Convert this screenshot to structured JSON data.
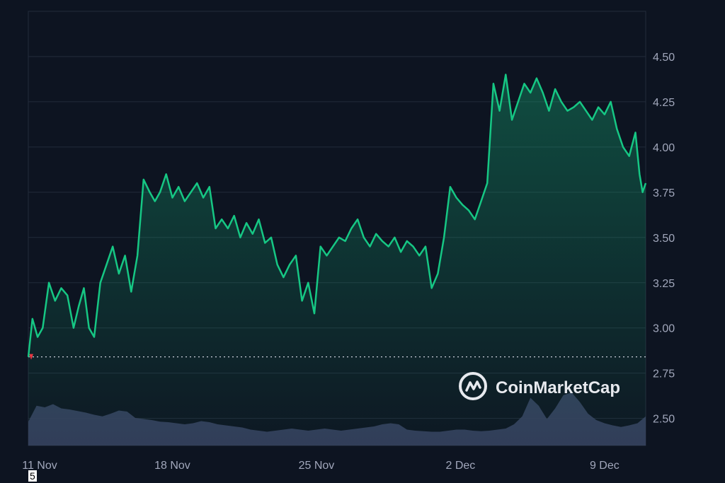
{
  "brand": {
    "name": "CoinMarketCap"
  },
  "stray_label": "5",
  "colors": {
    "background": "#0d1421",
    "grid": "#222b3a",
    "price_line": "#16c784",
    "volume_fill": "#3a4262",
    "baseline_marker": "#ea3943"
  },
  "chart_data": {
    "type": "line",
    "title": "",
    "xlabel": "",
    "ylabel": "",
    "y_axis_position": "right",
    "ylim": [
      2.35,
      4.75
    ],
    "yticks": [
      2.5,
      2.75,
      3.0,
      3.25,
      3.5,
      3.75,
      4.0,
      4.25,
      4.5
    ],
    "ytick_labels": [
      "2.50",
      "2.75",
      "3.00",
      "3.25",
      "3.50",
      "3.75",
      "4.00",
      "4.25",
      "4.50"
    ],
    "x_domain": [
      0,
      30
    ],
    "xticks": [
      {
        "x": 0,
        "label": "11 Nov"
      },
      {
        "x": 7,
        "label": "18 Nov"
      },
      {
        "x": 14,
        "label": "25 Nov"
      },
      {
        "x": 21,
        "label": "2 Dec"
      },
      {
        "x": 28,
        "label": "9 Dec"
      }
    ],
    "grid": "horizontal",
    "reference_line": {
      "y": 2.84,
      "style": "dotted"
    },
    "series": [
      {
        "values_x": [
          0,
          0.2,
          0.45,
          0.7,
          1.0,
          1.3,
          1.6,
          1.9,
          2.2,
          2.45,
          2.7,
          2.95,
          3.2,
          3.5,
          3.8,
          4.1,
          4.4,
          4.7,
          5.0,
          5.3,
          5.6,
          5.9,
          6.15,
          6.4,
          6.7,
          7.0,
          7.3,
          7.6,
          7.9,
          8.2,
          8.5,
          8.8,
          9.1,
          9.4,
          9.7,
          10.0,
          10.3,
          10.6,
          10.9,
          11.2,
          11.5,
          11.8,
          12.1,
          12.4,
          12.7,
          13.0,
          13.3,
          13.6,
          13.9,
          14.2,
          14.5,
          14.8,
          15.1,
          15.4,
          15.7,
          16.0,
          16.3,
          16.6,
          16.9,
          17.2,
          17.5,
          17.8,
          18.1,
          18.4,
          18.7,
          19.0,
          19.3,
          19.6,
          19.9,
          20.2,
          20.5,
          20.8,
          21.1,
          21.4,
          21.7,
          22.0,
          22.3,
          22.6,
          22.9,
          23.2,
          23.5,
          23.8,
          24.1,
          24.4,
          24.7,
          25.0,
          25.3,
          25.6,
          25.9,
          26.2,
          26.5,
          26.8,
          27.1,
          27.4,
          27.7,
          28.0,
          28.3,
          28.6,
          28.9,
          29.2,
          29.5,
          29.7,
          29.85,
          30.0
        ],
        "values": [
          2.84,
          3.05,
          2.95,
          3.0,
          3.25,
          3.15,
          3.22,
          3.18,
          3.0,
          3.12,
          3.22,
          3.0,
          2.95,
          3.25,
          3.35,
          3.45,
          3.3,
          3.4,
          3.2,
          3.4,
          3.82,
          3.75,
          3.7,
          3.75,
          3.85,
          3.72,
          3.78,
          3.7,
          3.75,
          3.8,
          3.72,
          3.78,
          3.55,
          3.6,
          3.55,
          3.62,
          3.5,
          3.58,
          3.52,
          3.6,
          3.47,
          3.5,
          3.35,
          3.28,
          3.35,
          3.4,
          3.15,
          3.25,
          3.08,
          3.45,
          3.4,
          3.45,
          3.5,
          3.48,
          3.55,
          3.6,
          3.5,
          3.45,
          3.52,
          3.48,
          3.45,
          3.5,
          3.42,
          3.48,
          3.45,
          3.4,
          3.45,
          3.22,
          3.3,
          3.5,
          3.78,
          3.72,
          3.68,
          3.65,
          3.6,
          3.7,
          3.8,
          4.35,
          4.2,
          4.4,
          4.15,
          4.25,
          4.35,
          4.3,
          4.38,
          4.3,
          4.2,
          4.32,
          4.25,
          4.2,
          4.22,
          4.25,
          4.2,
          4.15,
          4.22,
          4.18,
          4.25,
          4.1,
          4.0,
          3.95,
          4.08,
          3.85,
          3.75,
          3.8
        ]
      }
    ],
    "volume": {
      "values": [
        0.45,
        0.75,
        0.72,
        0.78,
        0.7,
        0.68,
        0.65,
        0.62,
        0.58,
        0.55,
        0.6,
        0.66,
        0.64,
        0.52,
        0.5,
        0.48,
        0.45,
        0.44,
        0.42,
        0.4,
        0.42,
        0.46,
        0.44,
        0.4,
        0.38,
        0.36,
        0.34,
        0.3,
        0.28,
        0.26,
        0.28,
        0.3,
        0.32,
        0.3,
        0.28,
        0.3,
        0.32,
        0.3,
        0.28,
        0.3,
        0.32,
        0.34,
        0.36,
        0.4,
        0.42,
        0.4,
        0.3,
        0.28,
        0.27,
        0.26,
        0.26,
        0.28,
        0.3,
        0.3,
        0.28,
        0.27,
        0.28,
        0.3,
        0.32,
        0.4,
        0.55,
        0.9,
        0.75,
        0.5,
        0.7,
        0.95,
        1.0,
        0.82,
        0.6,
        0.48,
        0.42,
        0.38,
        0.35,
        0.38,
        0.42,
        0.55
      ]
    }
  }
}
